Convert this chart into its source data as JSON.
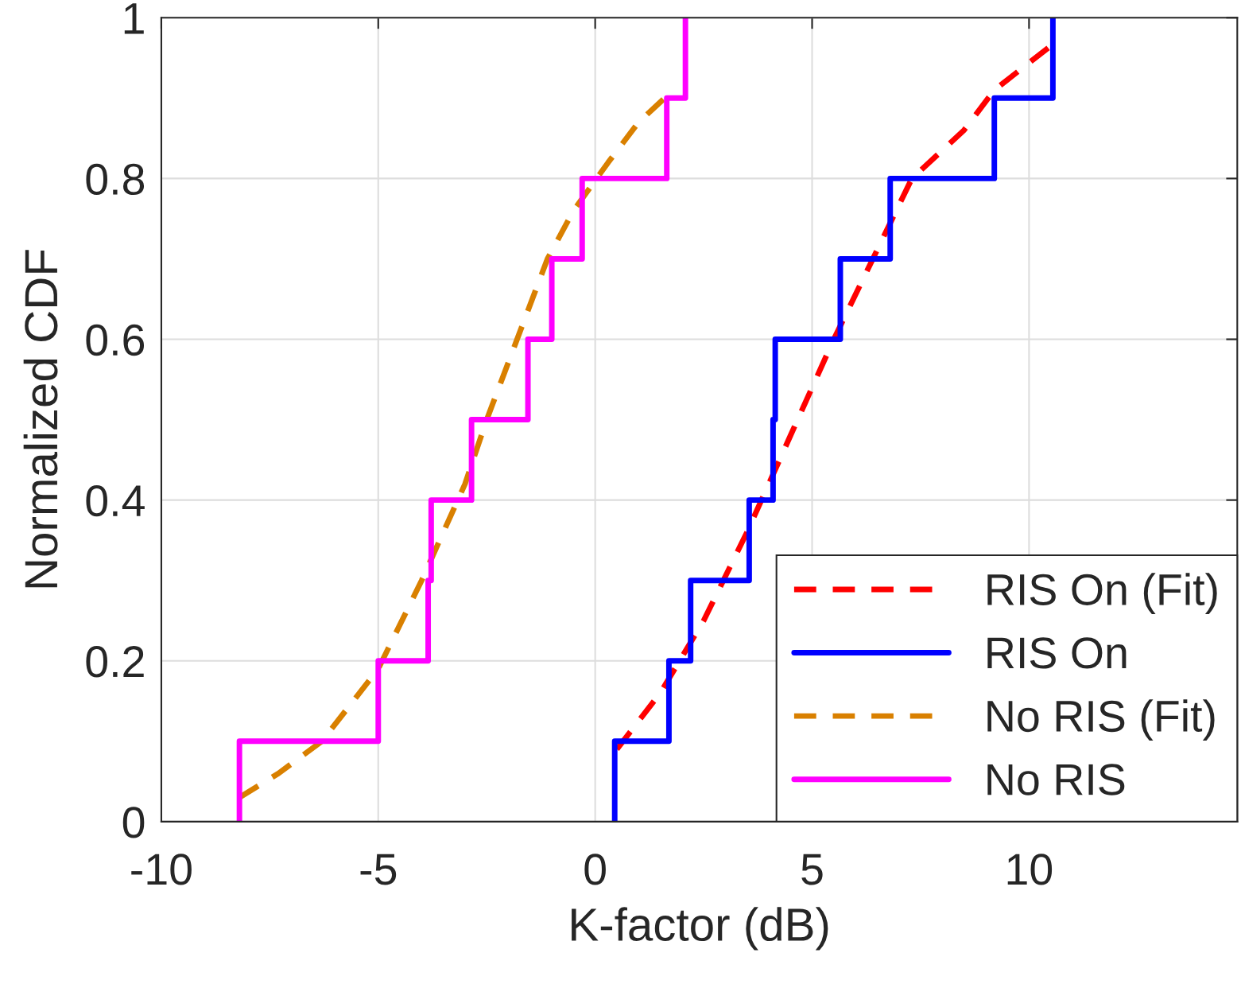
{
  "chart_data": {
    "type": "line",
    "xlabel": "K-factor (dB)",
    "ylabel": "Normalized CDF",
    "xlim": [
      -10,
      14.8
    ],
    "ylim": [
      0,
      1
    ],
    "xticks": [
      -10,
      -5,
      0,
      5,
      10
    ],
    "yticks": [
      0,
      0.2,
      0.4,
      0.6,
      0.8,
      1
    ],
    "grid": true,
    "legend": "bottom right",
    "series": [
      {
        "name": "RIS On (Fit)",
        "line_style": "dashed",
        "color": "#ff0000",
        "x": [
          0.5,
          1.5,
          2.5,
          3.5,
          4.5,
          5.5,
          6.4,
          7.3,
          8.5,
          9.2,
          10.5
        ],
        "values": [
          0.09,
          0.16,
          0.25,
          0.36,
          0.48,
          0.6,
          0.7,
          0.8,
          0.86,
          0.91,
          0.965
        ]
      },
      {
        "name": "RIS On",
        "type": "step",
        "line_style": "solid",
        "color": "#0000ff",
        "x": [
          0.45,
          0.45,
          1.7,
          2.2,
          3.55,
          4.1,
          4.15,
          5.65,
          6.8,
          9.2,
          10.55
        ],
        "values": [
          0,
          0.1,
          0.2,
          0.3,
          0.4,
          0.5,
          0.6,
          0.7,
          0.8,
          0.9,
          1.0
        ]
      },
      {
        "name": "No RIS (Fit)",
        "line_style": "dashed",
        "color": "#d98000",
        "x": [
          -8.2,
          -7.3,
          -6.3,
          -5,
          -4,
          -3,
          -2.5,
          -1.8,
          -1.1,
          -0.5,
          0.3,
          1.0,
          1.6
        ],
        "values": [
          0.03,
          0.06,
          0.1,
          0.19,
          0.3,
          0.42,
          0.5,
          0.6,
          0.7,
          0.76,
          0.82,
          0.87,
          0.9
        ]
      },
      {
        "name": "No RIS",
        "type": "step",
        "line_style": "solid",
        "color": "#ff00ff",
        "x": [
          -8.2,
          -8.2,
          -5,
          -3.85,
          -3.78,
          -2.85,
          -1.55,
          -1.0,
          -0.3,
          1.65,
          2.08
        ],
        "values": [
          0,
          0.1,
          0.2,
          0.3,
          0.4,
          0.5,
          0.6,
          0.7,
          0.8,
          0.9,
          1.0
        ]
      }
    ]
  }
}
